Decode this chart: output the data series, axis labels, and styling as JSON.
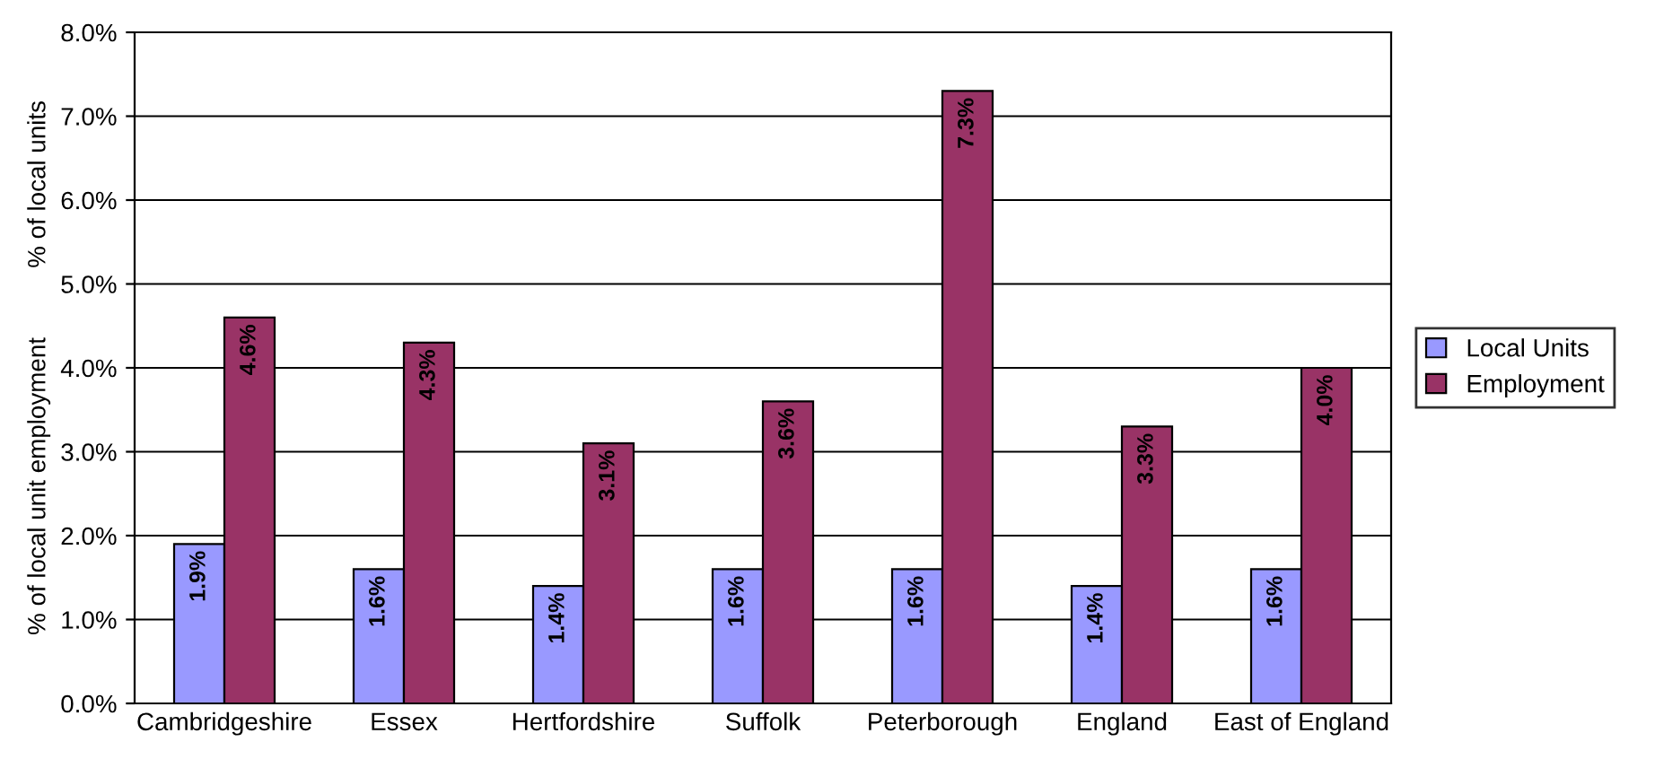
{
  "chart_data": {
    "type": "bar",
    "ylabel": "% of local unit employment          % of local units",
    "categories": [
      "Cambridgeshire",
      "Essex",
      "Hertfordshire",
      "Suffolk",
      "Peterborough",
      "England",
      "East of England"
    ],
    "series": [
      {
        "name": "Local Units",
        "color": "#9999ff",
        "values": [
          1.9,
          1.6,
          1.4,
          1.6,
          1.6,
          1.4,
          1.6
        ],
        "value_labels": [
          "1.9%",
          "1.6%",
          "1.4%",
          "1.6%",
          "1.6%",
          "1.4%",
          "1.6%"
        ]
      },
      {
        "name": "Employment",
        "color": "#993366",
        "values": [
          4.6,
          4.3,
          3.1,
          3.6,
          7.3,
          3.3,
          4.0
        ],
        "value_labels": [
          "4.6%",
          "4.3%",
          "3.1%",
          "3.6%",
          "7.3%",
          "3.3%",
          "4.0%"
        ]
      }
    ],
    "ylim": [
      0,
      8
    ],
    "yticks": [
      {
        "value": 0,
        "label": "0.0%"
      },
      {
        "value": 1,
        "label": "1.0%"
      },
      {
        "value": 2,
        "label": "2.0%"
      },
      {
        "value": 3,
        "label": "3.0%"
      },
      {
        "value": 4,
        "label": "4.0%"
      },
      {
        "value": 5,
        "label": "5.0%"
      },
      {
        "value": 6,
        "label": "6.0%"
      },
      {
        "value": 7,
        "label": "7.0%"
      },
      {
        "value": 8,
        "label": "8.0%"
      }
    ],
    "grid": "y",
    "legend": "right"
  }
}
